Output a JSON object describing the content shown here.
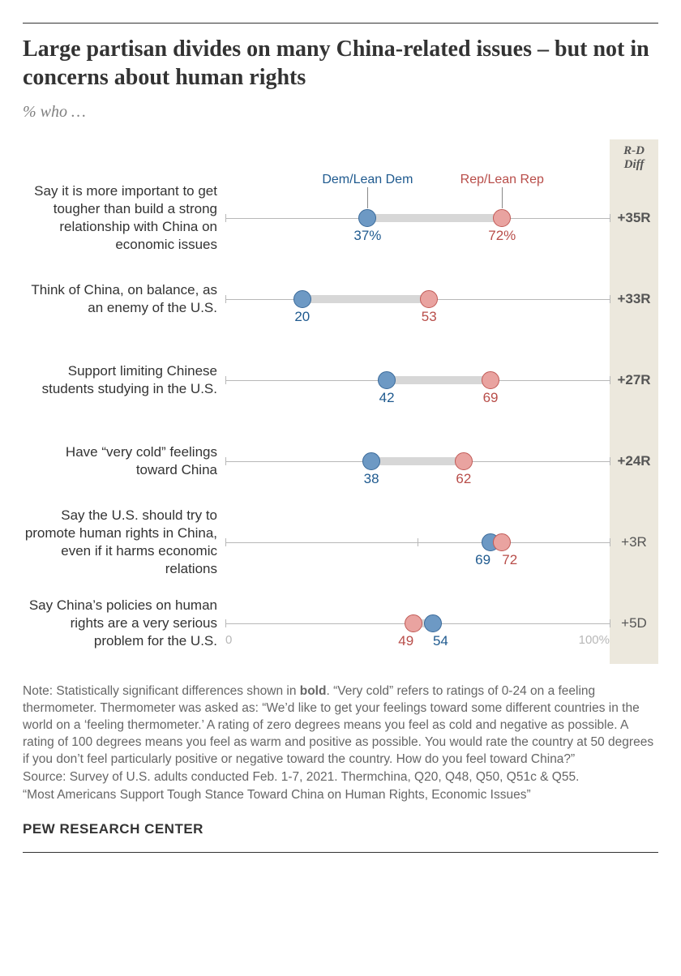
{
  "title": "Large partisan divides on many China-related issues – but not in concerns about human rights",
  "subtitle": "% who …",
  "legend": {
    "dem": "Dem/Lean Dem",
    "rep": "Rep/Lean Rep"
  },
  "diff_header_l1": "R-D",
  "diff_header_l2": "Diff",
  "axis": {
    "min": 0,
    "max": 100,
    "zero_label": "0",
    "hundred_label": "100%",
    "mid_tick": 50
  },
  "colors": {
    "dem_fill": "#6d99c4",
    "dem_stroke": "#3a6a9a",
    "dem_text": "#1f5a8f",
    "rep_fill": "#e9a3a0",
    "rep_stroke": "#c15a56",
    "rep_text": "#b84d49",
    "connector": "#d7d7d7",
    "axis": "#b8b8b8",
    "diff_bg": "#ece8dd",
    "body_text": "#333333",
    "note_text": "#666666"
  },
  "rows": [
    {
      "label": "Say it is more important to get tougher than build a strong relationship with China on economic issues",
      "dem": 37,
      "rep": 72,
      "dem_label": "37%",
      "rep_label": "72%",
      "diff": "+35R",
      "diff_bold": true,
      "show_legend": true
    },
    {
      "label": "Think of China, on balance, as an enemy of the U.S.",
      "dem": 20,
      "rep": 53,
      "dem_label": "20",
      "rep_label": "53",
      "diff": "+33R",
      "diff_bold": true
    },
    {
      "label": "Support limiting Chinese students studying in the U.S.",
      "dem": 42,
      "rep": 69,
      "dem_label": "42",
      "rep_label": "69",
      "diff": "+27R",
      "diff_bold": true
    },
    {
      "label": "Have “very cold” feelings toward China",
      "dem": 38,
      "rep": 62,
      "dem_label": "38",
      "rep_label": "62",
      "diff": "+24R",
      "diff_bold": true
    },
    {
      "label": "Say the U.S. should try to promote human rights in China, even if it harms economic relations",
      "dem": 69,
      "rep": 72,
      "dem_label": "69",
      "rep_label": "72",
      "diff": "+3R",
      "diff_bold": false
    },
    {
      "label": "Say China’s policies on human rights are a very serious problem for the U.S.",
      "dem": 54,
      "rep": 49,
      "dem_label": "54",
      "rep_label": "49",
      "diff": "+5D",
      "diff_bold": false,
      "show_axis_labels": true
    }
  ],
  "note": "Note: Statistically significant differences shown in <b>bold</b>. “Very cold” refers to ratings of 0-24 on a feeling thermometer. Thermometer was asked as: “We’d like to get your feelings toward some different countries in the world on a ‘feeling thermometer.’ A rating of zero degrees means you feel as cold and negative as possible. A rating of 100 degrees means you feel as warm and positive as possible. You would rate the country at 50 degrees if you don’t feel particularly positive or negative toward the country. How do you feel toward China?”",
  "source": "Source: Survey of U.S. adults conducted Feb. 1-7, 2021. Thermchina, Q20, Q48, Q50, Q51c & Q55.",
  "report": "“Most Americans Support Tough Stance Toward China on Human Rights, Economic Issues”",
  "logo": "PEW RESEARCH CENTER"
}
